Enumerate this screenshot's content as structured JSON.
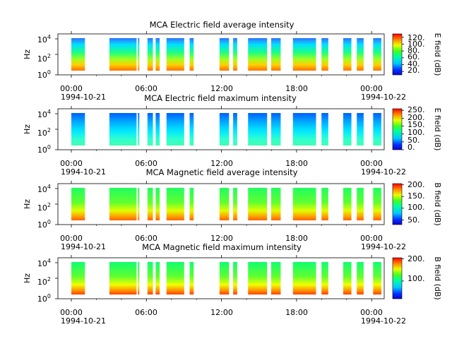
{
  "chart_data": [
    {
      "type": "heatmap",
      "title": "MCA  Electric field average intensity",
      "ylabel": "Hz",
      "colorbar_label": "E field (dB)",
      "colorbar_ticks": [
        "20.",
        "40.",
        "60.",
        "80.",
        "100.",
        "120."
      ],
      "colorbar_range": [
        10,
        130
      ],
      "y_ticks": [
        "10",
        "10",
        "10"
      ],
      "y_tick_exponents": [
        "0",
        "2",
        "4"
      ],
      "x_ticks": [
        "00:00",
        "06:00",
        "12:00",
        "18:00",
        "00:00"
      ],
      "x_start_date": "1994-10-21",
      "x_end_date": "1994-10-22",
      "data_intervals_hours": [
        [
          0.0,
          1.0
        ],
        [
          2.8,
          4.8
        ],
        [
          4.9,
          5.0
        ],
        [
          5.6,
          6.0
        ],
        [
          6.2,
          6.5
        ],
        [
          7.0,
          8.3
        ],
        [
          8.7,
          9.0
        ],
        [
          10.9,
          11.6
        ],
        [
          11.9,
          12.2
        ],
        [
          13.0,
          14.4
        ],
        [
          14.7,
          15.4
        ],
        [
          16.3,
          18.0
        ],
        [
          18.4,
          18.9
        ],
        [
          20.0,
          20.6
        ],
        [
          21.0,
          21.5
        ],
        [
          22.2,
          22.8
        ]
      ],
      "intensity_profile": "low frequencies ~100-120 dB near 06:00, 12:00 and 18:00; mid ~60-80 dB; blue patches at 22:30"
    },
    {
      "type": "heatmap",
      "title": "MCA  Electric field maximum intensity",
      "ylabel": "Hz",
      "colorbar_label": "E field (dB)",
      "colorbar_ticks": [
        "0.",
        "50.",
        "100.",
        "150.",
        "200.",
        "250."
      ],
      "colorbar_range": [
        0,
        260
      ],
      "y_ticks": [
        "10",
        "10",
        "10"
      ],
      "y_tick_exponents": [
        "0",
        "2",
        "4"
      ],
      "x_ticks": [
        "00:00",
        "06:00",
        "12:00",
        "18:00",
        "00:00"
      ],
      "x_start_date": "1994-10-21",
      "x_end_date": "1994-10-22",
      "data_intervals_hours": [
        [
          0.0,
          1.0
        ],
        [
          2.8,
          4.8
        ],
        [
          4.9,
          5.0
        ],
        [
          5.6,
          6.0
        ],
        [
          6.2,
          6.5
        ],
        [
          7.0,
          8.3
        ],
        [
          8.7,
          9.0
        ],
        [
          10.9,
          11.6
        ],
        [
          11.9,
          12.2
        ],
        [
          13.0,
          14.4
        ],
        [
          14.7,
          15.4
        ],
        [
          16.3,
          18.0
        ],
        [
          18.4,
          18.9
        ],
        [
          20.0,
          20.6
        ],
        [
          21.0,
          21.5
        ],
        [
          22.2,
          22.8
        ]
      ],
      "intensity_profile": "mostly ~60-120 dB (blue-cyan), dark blue bands"
    },
    {
      "type": "heatmap",
      "title": "MCA  Magnetic field average intensity",
      "ylabel": "Hz",
      "colorbar_label": "B field (dB)",
      "colorbar_ticks": [
        "50.",
        "100.",
        "150.",
        "200."
      ],
      "colorbar_range": [
        30,
        205
      ],
      "y_ticks": [
        "10",
        "10",
        "10"
      ],
      "y_tick_exponents": [
        "0",
        "2",
        "4"
      ],
      "x_ticks": [
        "00:00",
        "06:00",
        "12:00",
        "18:00",
        "00:00"
      ],
      "x_start_date": "1994-10-21",
      "x_end_date": "1994-10-22",
      "data_intervals_hours": [
        [
          0.0,
          1.0
        ],
        [
          2.8,
          4.8
        ],
        [
          4.9,
          5.0
        ],
        [
          5.6,
          6.0
        ],
        [
          6.2,
          6.5
        ],
        [
          7.0,
          8.3
        ],
        [
          8.7,
          9.0
        ],
        [
          10.9,
          11.6
        ],
        [
          11.9,
          12.2
        ],
        [
          13.0,
          14.4
        ],
        [
          14.7,
          15.4
        ],
        [
          16.3,
          18.0
        ],
        [
          18.4,
          18.9
        ],
        [
          20.0,
          20.6
        ],
        [
          21.0,
          21.5
        ],
        [
          22.2,
          22.8
        ]
      ],
      "intensity_profile": "high frequencies ~100 dB (green), low frequencies up to ~180 dB (orange)"
    },
    {
      "type": "heatmap",
      "title": "MCA  Magnetic field maximum intensity",
      "ylabel": "Hz",
      "colorbar_label": "B field (dB)",
      "colorbar_ticks": [
        "100.",
        "200."
      ],
      "colorbar_range": [
        20,
        205
      ],
      "y_ticks": [
        "10",
        "10",
        "10"
      ],
      "y_tick_exponents": [
        "0",
        "2",
        "4"
      ],
      "x_ticks": [
        "00:00",
        "06:00",
        "12:00",
        "18:00",
        "00:00"
      ],
      "x_start_date": "1994-10-21",
      "x_end_date": "1994-10-22",
      "data_intervals_hours": [
        [
          0.0,
          1.0
        ],
        [
          2.8,
          4.8
        ],
        [
          4.9,
          5.0
        ],
        [
          5.6,
          6.0
        ],
        [
          6.2,
          6.5
        ],
        [
          7.0,
          8.3
        ],
        [
          8.7,
          9.0
        ],
        [
          10.9,
          11.6
        ],
        [
          11.9,
          12.2
        ],
        [
          13.0,
          14.4
        ],
        [
          14.7,
          15.4
        ],
        [
          16.3,
          18.0
        ],
        [
          18.4,
          18.9
        ],
        [
          20.0,
          20.6
        ],
        [
          21.0,
          21.5
        ],
        [
          22.2,
          22.8
        ]
      ],
      "intensity_profile": "high frequencies ~110 dB (green), low frequencies up to ~190 dB (orange-red)"
    }
  ]
}
